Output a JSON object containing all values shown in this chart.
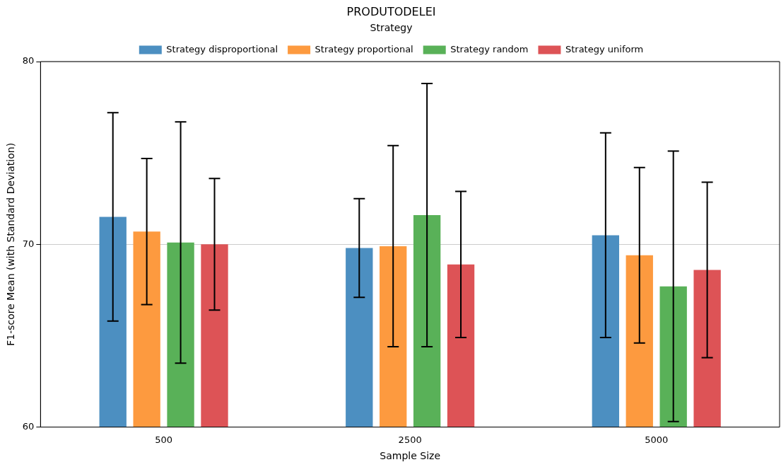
{
  "chart_data": {
    "type": "bar",
    "title": "PRODUTODELEI",
    "xlabel": "Sample Size",
    "ylabel": "F1-score Mean (with Standard Deviation)",
    "legend_title": "Strategy",
    "categories": [
      "500",
      "2500",
      "5000"
    ],
    "series": [
      {
        "name": "Strategy disproportional",
        "color": "#4c8fc1",
        "values": [
          71.5,
          69.8,
          70.5
        ],
        "errors": [
          5.7,
          2.7,
          5.6
        ]
      },
      {
        "name": "Strategy proportional",
        "color": "#fd9a3f",
        "values": [
          70.7,
          69.9,
          69.4
        ],
        "errors": [
          4.0,
          5.5,
          4.8
        ]
      },
      {
        "name": "Strategy random",
        "color": "#59b158",
        "values": [
          70.1,
          71.6,
          67.7
        ],
        "errors": [
          6.6,
          7.2,
          7.4
        ]
      },
      {
        "name": "Strategy uniform",
        "color": "#dd5356",
        "values": [
          70.0,
          68.9,
          68.6
        ],
        "errors": [
          3.6,
          4.0,
          4.8
        ]
      }
    ],
    "ylim": [
      60,
      80
    ],
    "yticks": [
      60,
      70,
      80
    ],
    "grid": "y",
    "legend": "top"
  }
}
